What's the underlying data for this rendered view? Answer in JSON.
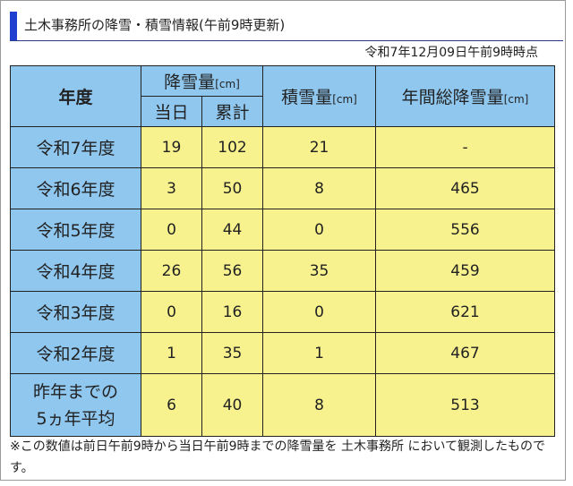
{
  "header": {
    "title": "土木事務所の降雪・積雪情報(午前9時更新)",
    "timestamp": "令和7年12月09日午前9時時点"
  },
  "table": {
    "col_year": "年度",
    "col_snowfall": "降雪量",
    "col_snowfall_unit": "[cm]",
    "col_today": "当日",
    "col_total": "累計",
    "col_depth": "積雪量",
    "col_depth_unit": "[cm]",
    "col_annual": "年間総降雪量",
    "col_annual_unit": "[cm]",
    "rows": [
      {
        "year": "令和7年度",
        "today": "19",
        "total": "102",
        "depth": "21",
        "annual": "-"
      },
      {
        "year": "令和6年度",
        "today": "3",
        "total": "50",
        "depth": "8",
        "annual": "465"
      },
      {
        "year": "令和5年度",
        "today": "0",
        "total": "44",
        "depth": "0",
        "annual": "556"
      },
      {
        "year": "令和4年度",
        "today": "26",
        "total": "56",
        "depth": "35",
        "annual": "459"
      },
      {
        "year": "令和3年度",
        "today": "0",
        "total": "16",
        "depth": "0",
        "annual": "621"
      },
      {
        "year": "令和2年度",
        "today": "1",
        "total": "35",
        "depth": "1",
        "annual": "467"
      }
    ],
    "avg_label_line1": "昨年までの",
    "avg_label_line2": "5ヵ年平均",
    "avg": {
      "today": "6",
      "total": "40",
      "depth": "8",
      "annual": "513"
    }
  },
  "footnote": "※この数値は前日午前9時から当日午前9時までの降雪量を 土木事務所 において観測したものです。"
}
